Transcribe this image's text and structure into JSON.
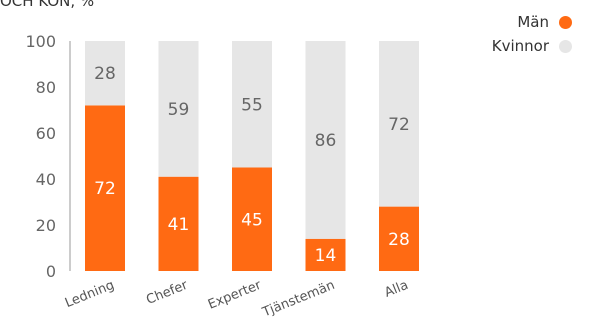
{
  "title": "OCH KÖN, %",
  "chart_data": {
    "type": "bar",
    "stacked": true,
    "categories": [
      "Ledning",
      "Chefer",
      "Experter",
      "Tjänstemän",
      "Alla"
    ],
    "series": [
      {
        "name": "Män",
        "color": "#ff6a13",
        "values": [
          72,
          41,
          45,
          14,
          28
        ]
      },
      {
        "name": "Kvinnor",
        "color": "#e6e6e6",
        "values": [
          28,
          59,
          55,
          86,
          72
        ]
      }
    ],
    "ylim": [
      0,
      100
    ],
    "yticks": [
      0,
      20,
      40,
      60,
      80,
      100
    ],
    "grid": false,
    "legend_position": "top-right"
  }
}
